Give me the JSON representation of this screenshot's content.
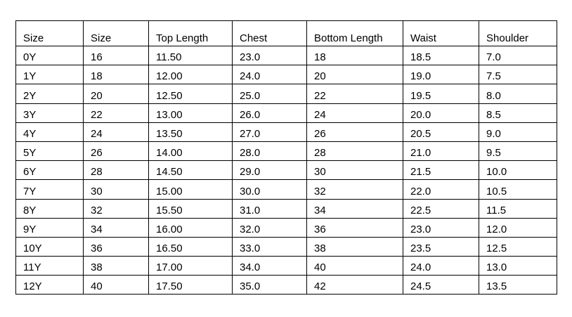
{
  "table": {
    "headers": [
      "Size",
      "Size",
      "Top Length",
      "Chest",
      "Bottom Length",
      "Waist",
      "Shoulder"
    ],
    "rows": [
      [
        "0Y",
        "16",
        "11.50",
        "23.0",
        "18",
        "18.5",
        "7.0"
      ],
      [
        "1Y",
        "18",
        "12.00",
        "24.0",
        "20",
        "19.0",
        "7.5"
      ],
      [
        "2Y",
        "20",
        "12.50",
        "25.0",
        "22",
        "19.5",
        "8.0"
      ],
      [
        "3Y",
        "22",
        "13.00",
        "26.0",
        "24",
        "20.0",
        "8.5"
      ],
      [
        "4Y",
        "24",
        "13.50",
        "27.0",
        "26",
        "20.5",
        "9.0"
      ],
      [
        "5Y",
        "26",
        "14.00",
        "28.0",
        "28",
        "21.0",
        "9.5"
      ],
      [
        "6Y",
        "28",
        "14.50",
        "29.0",
        "30",
        "21.5",
        "10.0"
      ],
      [
        "7Y",
        "30",
        "15.00",
        "30.0",
        "32",
        "22.0",
        "10.5"
      ],
      [
        "8Y",
        "32",
        "15.50",
        "31.0",
        "34",
        "22.5",
        "11.5"
      ],
      [
        "9Y",
        "34",
        "16.00",
        "32.0",
        "36",
        "23.0",
        "12.0"
      ],
      [
        "10Y",
        "36",
        "16.50",
        "33.0",
        "38",
        "23.5",
        "12.5"
      ],
      [
        "11Y",
        "38",
        "17.00",
        "34.0",
        "40",
        "24.0",
        "13.0"
      ],
      [
        "12Y",
        "40",
        "17.50",
        "35.0",
        "42",
        "24.5",
        "13.5"
      ]
    ]
  }
}
